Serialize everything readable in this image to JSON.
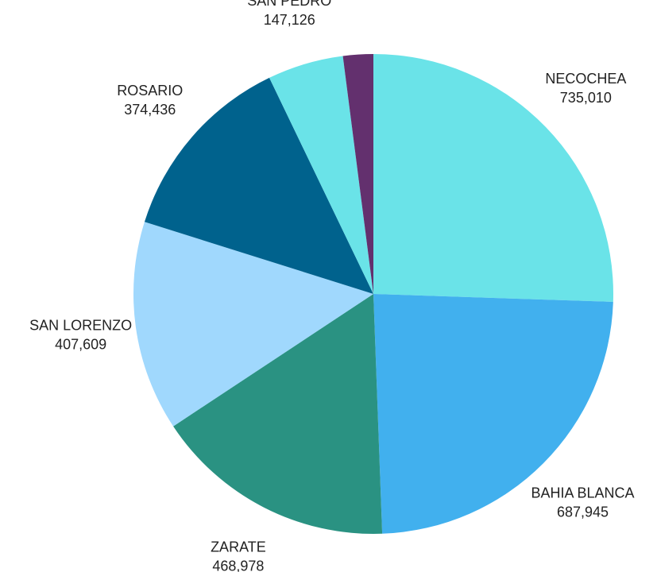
{
  "chart_data": {
    "type": "pie",
    "categories": [
      "NECOCHEA",
      "BAHIA BLANCA",
      "ZARATE",
      "SAN LORENZO",
      "ROSARIO",
      "SAN PEDRO",
      null
    ],
    "values": [
      735010,
      687945,
      468978,
      407609,
      374436,
      147126,
      58500
    ],
    "value_labels": [
      "735,010",
      "687,945",
      "468,978",
      "407,609",
      "374,436",
      "147,126",
      null
    ],
    "colors": [
      "#6ae3e8",
      "#41b0ee",
      "#2a9282",
      "#a0d8fd",
      "#00628d",
      "#6ae3e8",
      "#63306e"
    ]
  }
}
